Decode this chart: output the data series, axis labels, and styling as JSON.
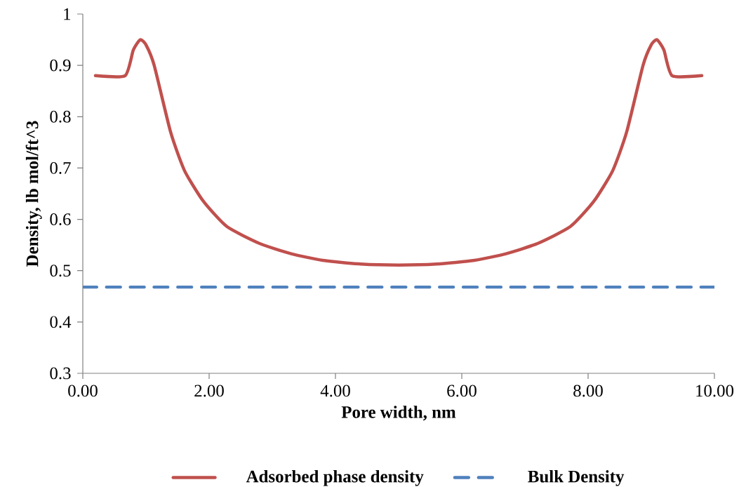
{
  "chart_data": {
    "type": "line",
    "xlabel": "Pore width, nm",
    "ylabel": "Density, lb mol/ft^3",
    "xlim": [
      0,
      10
    ],
    "ylim": [
      0.3,
      1
    ],
    "xticks": [
      {
        "value": 0,
        "label": "0.00"
      },
      {
        "value": 2,
        "label": "2.00"
      },
      {
        "value": 4,
        "label": "4.00"
      },
      {
        "value": 6,
        "label": "6.00"
      },
      {
        "value": 8,
        "label": "8.00"
      },
      {
        "value": 10,
        "label": "10.00"
      }
    ],
    "yticks": [
      0.3,
      0.4,
      0.5,
      0.6,
      0.7,
      0.8,
      0.9,
      1
    ],
    "legend": "bottom",
    "series": [
      {
        "name": "Adsorbed phase density",
        "color": "#c0504d",
        "line_style": "solid",
        "x": [
          0.2,
          0.67,
          0.8,
          0.91,
          1.0,
          1.13,
          1.39,
          1.61,
          1.91,
          2.28,
          2.8,
          3.3,
          3.8,
          4.4,
          5.0,
          5.6,
          6.2,
          6.7,
          7.2,
          7.72,
          8.09,
          8.39,
          8.61,
          8.87,
          9.0,
          9.09,
          9.2,
          9.33,
          9.8
        ],
        "values": [
          0.88,
          0.88,
          0.93,
          0.95,
          0.94,
          0.9,
          0.77,
          0.695,
          0.635,
          0.586,
          0.553,
          0.533,
          0.52,
          0.513,
          0.511,
          0.513,
          0.52,
          0.533,
          0.553,
          0.586,
          0.635,
          0.695,
          0.77,
          0.9,
          0.94,
          0.95,
          0.93,
          0.88,
          0.88
        ]
      },
      {
        "name": "Bulk Density",
        "color": "#4f81bd",
        "line_style": "dashed",
        "x": [
          0,
          10
        ],
        "values": [
          0.468,
          0.468
        ]
      }
    ]
  }
}
